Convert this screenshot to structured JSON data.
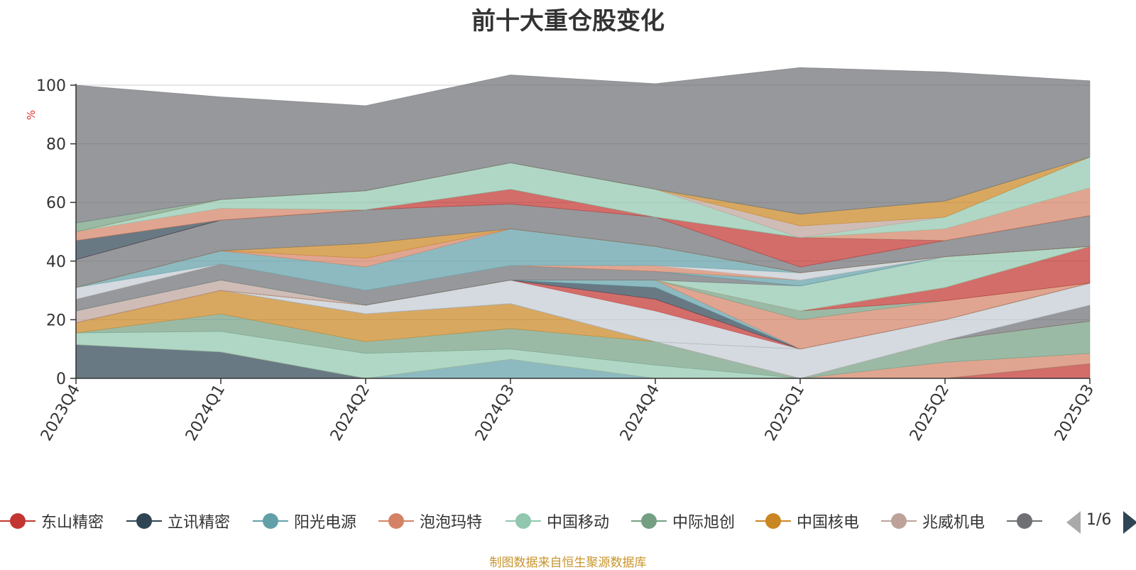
{
  "chart_data": {
    "type": "area",
    "stacked": true,
    "title": "前十大重仓股变化",
    "ylabel": "%",
    "ylim": [
      0,
      100
    ],
    "yticks": [
      0,
      20,
      40,
      60,
      80,
      100
    ],
    "grid": true,
    "categories": [
      "2023Q4",
      "2024Q1",
      "2024Q2",
      "2024Q3",
      "2024Q4",
      "2025Q1",
      "2025Q2",
      "2025Q3"
    ],
    "series": [
      {
        "name": "东山精密",
        "color": "#c23531",
        "values": [
          0,
          0,
          0,
          0,
          0,
          0,
          0,
          5.0
        ]
      },
      {
        "name": "立讯精密",
        "color": "#2f4554",
        "values": [
          11.5,
          9.0,
          0,
          0,
          0,
          0,
          0,
          0
        ]
      },
      {
        "name": "阳光电源",
        "color": "#61a0a8",
        "values": [
          0,
          0,
          0,
          6.5,
          0,
          0,
          0,
          0
        ]
      },
      {
        "name": "泡泡玛特",
        "color": "#d48265",
        "values": [
          0,
          0,
          0,
          0,
          0,
          0,
          5.5,
          3.5
        ]
      },
      {
        "name": "中国移动",
        "color": "#91c7ae",
        "values": [
          4.0,
          7.0,
          8.5,
          3.5,
          4.5,
          0,
          0,
          0
        ]
      },
      {
        "name": "中际旭创",
        "color": "#749f83",
        "values": [
          0,
          6.0,
          4.0,
          7.0,
          8.0,
          0,
          7.5,
          11.0
        ]
      },
      {
        "name": "中国核电",
        "color": "#ca8622",
        "values": [
          3.5,
          8.0,
          9.5,
          8.5,
          0,
          0,
          0,
          0
        ]
      },
      {
        "name": "兆威机电",
        "color": "#bda29a",
        "values": [
          0,
          0,
          0,
          0,
          0,
          0,
          0,
          0
        ]
      },
      {
        "name": "",
        "color": "#6e7074",
        "values": [
          0,
          0,
          0,
          0,
          0,
          0,
          0,
          5.5
        ]
      },
      {
        "name": "",
        "color": "#c4ccd3",
        "values": [
          0,
          0,
          0,
          0,
          0,
          10.0,
          7.0,
          7.5
        ]
      },
      {
        "name": "",
        "color": "#546570",
        "values": [
          0,
          0,
          0,
          0,
          0,
          0,
          0,
          0
        ]
      },
      {
        "name": "",
        "color": "#c4ccd3",
        "values": [
          0,
          0,
          3.0,
          8.0,
          10.5,
          0,
          0,
          0
        ]
      },
      {
        "name": "",
        "color": "#c23531",
        "values": [
          0,
          0,
          0,
          0,
          4.0,
          0,
          0,
          0
        ]
      },
      {
        "name": "",
        "color": "#2f4554",
        "values": [
          0,
          0,
          0,
          0,
          4.0,
          0,
          0,
          0
        ]
      },
      {
        "name": "",
        "color": "#61a0a8",
        "values": [
          0,
          0,
          0,
          0,
          2.5,
          0,
          0,
          0
        ]
      },
      {
        "name": "",
        "color": "#d48265",
        "values": [
          0,
          0,
          0,
          0,
          0,
          10.0,
          6.5,
          0
        ]
      },
      {
        "name": "",
        "color": "#749f83",
        "values": [
          0,
          0,
          0,
          0,
          0,
          3.0,
          0,
          0
        ]
      },
      {
        "name": "",
        "color": "#c23531",
        "values": [
          0,
          0,
          0,
          0,
          0,
          0,
          4.5,
          12.5
        ]
      },
      {
        "name": "",
        "color": "#ca8622",
        "values": [
          0,
          0,
          0,
          0,
          0,
          0,
          0,
          0
        ]
      },
      {
        "name": "",
        "color": "#bda29a",
        "values": [
          4.0,
          3.5,
          0,
          0,
          0,
          0,
          0,
          0
        ]
      },
      {
        "name": "",
        "color": "#91c7ae",
        "values": [
          0,
          0,
          0,
          0,
          0,
          8.5,
          10.5,
          0
        ]
      },
      {
        "name": "",
        "color": "#6e7074",
        "values": [
          4.0,
          5.5,
          5.0,
          5.0,
          3.0,
          0,
          0,
          0
        ]
      },
      {
        "name": "",
        "color": "#61a0a8",
        "values": [
          0,
          0,
          0,
          0,
          0,
          2.0,
          0,
          0
        ]
      },
      {
        "name": "",
        "color": "#d48265",
        "values": [
          0,
          0,
          0,
          0,
          2.0,
          0,
          0,
          0
        ]
      },
      {
        "name": "",
        "color": "#c4ccd3",
        "values": [
          4.0,
          0,
          0,
          0,
          0,
          2.5,
          0,
          0
        ]
      },
      {
        "name": "",
        "color": "#61a0a8",
        "values": [
          0,
          4.5,
          8.0,
          12.5,
          6.5,
          0,
          0,
          0
        ]
      },
      {
        "name": "",
        "color": "#d48265",
        "values": [
          0,
          0,
          3.0,
          0,
          0,
          0,
          0,
          0
        ]
      },
      {
        "name": "",
        "color": "#ca8622",
        "values": [
          0,
          0,
          5.0,
          0,
          0,
          0,
          0,
          0
        ]
      },
      {
        "name": "",
        "color": "#6e7074",
        "values": [
          9.5,
          10.5,
          11.5,
          8.5,
          10.0,
          2.0,
          5.5,
          10.5
        ]
      },
      {
        "name": "",
        "color": "#c23531",
        "values": [
          0,
          0,
          0,
          5.0,
          0,
          10.0,
          0,
          0
        ]
      },
      {
        "name": "",
        "color": "#2f4554",
        "values": [
          6.5,
          0,
          0,
          0,
          0,
          0,
          0,
          0
        ]
      },
      {
        "name": "",
        "color": "#d48265",
        "values": [
          3.0,
          4.0,
          0,
          0,
          0,
          0,
          4.0,
          9.5
        ]
      },
      {
        "name": "",
        "color": "#91c7ae",
        "values": [
          0,
          3.0,
          6.5,
          9.0,
          9.5,
          0,
          4.0,
          10.5
        ]
      },
      {
        "name": "",
        "color": "#bda29a",
        "values": [
          0,
          0,
          0,
          0,
          0,
          4.0,
          0,
          0
        ]
      },
      {
        "name": "",
        "color": "#ca8622",
        "values": [
          0,
          0,
          0,
          0,
          0,
          4.0,
          5.5,
          0
        ]
      },
      {
        "name": "",
        "color": "#749f83",
        "values": [
          3.0,
          0,
          0,
          0,
          0,
          0,
          0,
          0
        ]
      },
      {
        "name": "",
        "color": "#6e7074",
        "values": [
          47.0,
          35.0,
          29.0,
          30.0,
          36.0,
          50.0,
          44.0,
          26.0
        ]
      }
    ]
  },
  "legend": {
    "items": [
      {
        "name": "东山精密",
        "color": "#c23531"
      },
      {
        "name": "立讯精密",
        "color": "#2f4554"
      },
      {
        "name": "阳光电源",
        "color": "#61a0a8"
      },
      {
        "name": "泡泡玛特",
        "color": "#d48265"
      },
      {
        "name": "中国移动",
        "color": "#91c7ae"
      },
      {
        "name": "中际旭创",
        "color": "#749f83"
      },
      {
        "name": "中国核电",
        "color": "#ca8622"
      },
      {
        "name": "兆威机电",
        "color": "#bda29a"
      },
      {
        "name": "",
        "color": "#6e7074"
      }
    ],
    "page": "1/6"
  },
  "source": "制图数据来自恒生聚源数据库"
}
